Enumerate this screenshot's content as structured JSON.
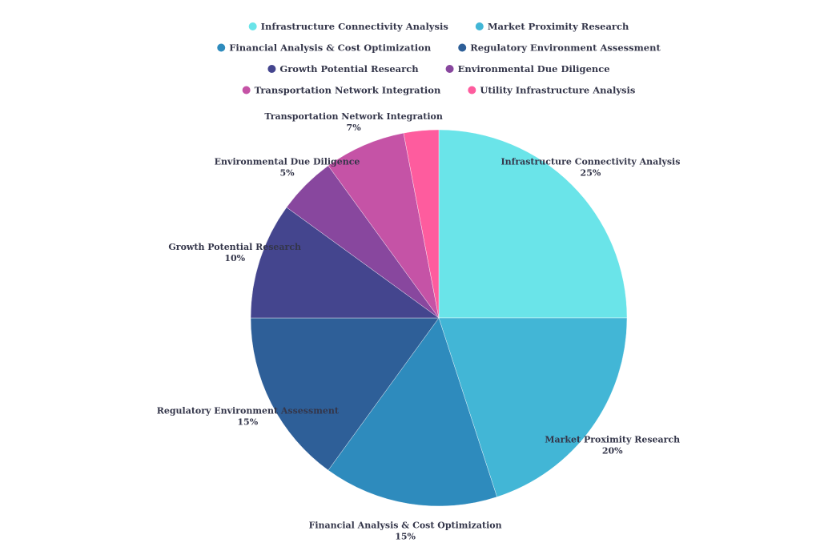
{
  "chart_data": {
    "type": "pie",
    "title": "",
    "slices": [
      {
        "label": "Infrastructure Connectivity Analysis",
        "value": 25,
        "display": "25%",
        "color": "#6ae4e9"
      },
      {
        "label": "Market Proximity Research",
        "value": 20,
        "display": "20%",
        "color": "#42b6d6"
      },
      {
        "label": "Financial Analysis & Cost Optimization",
        "value": 15,
        "display": "15%",
        "color": "#2e8bbd"
      },
      {
        "label": "Regulatory Environment Assessment",
        "value": 15,
        "display": "15%",
        "color": "#2e5f98"
      },
      {
        "label": "Growth Potential Research",
        "value": 10,
        "display": "10%",
        "color": "#44458e"
      },
      {
        "label": "Environmental Due Diligence",
        "value": 5,
        "display": "5%",
        "color": "#88479e"
      },
      {
        "label": "Transportation Network Integration",
        "value": 7,
        "display": "7%",
        "color": "#c553a6"
      },
      {
        "label": "Utility Infrastructure Analysis",
        "value": 3,
        "display": "",
        "color": "#fe5c9e"
      }
    ],
    "legend_position": "top",
    "start_angle": "12 o'clock",
    "direction": "clockwise"
  }
}
